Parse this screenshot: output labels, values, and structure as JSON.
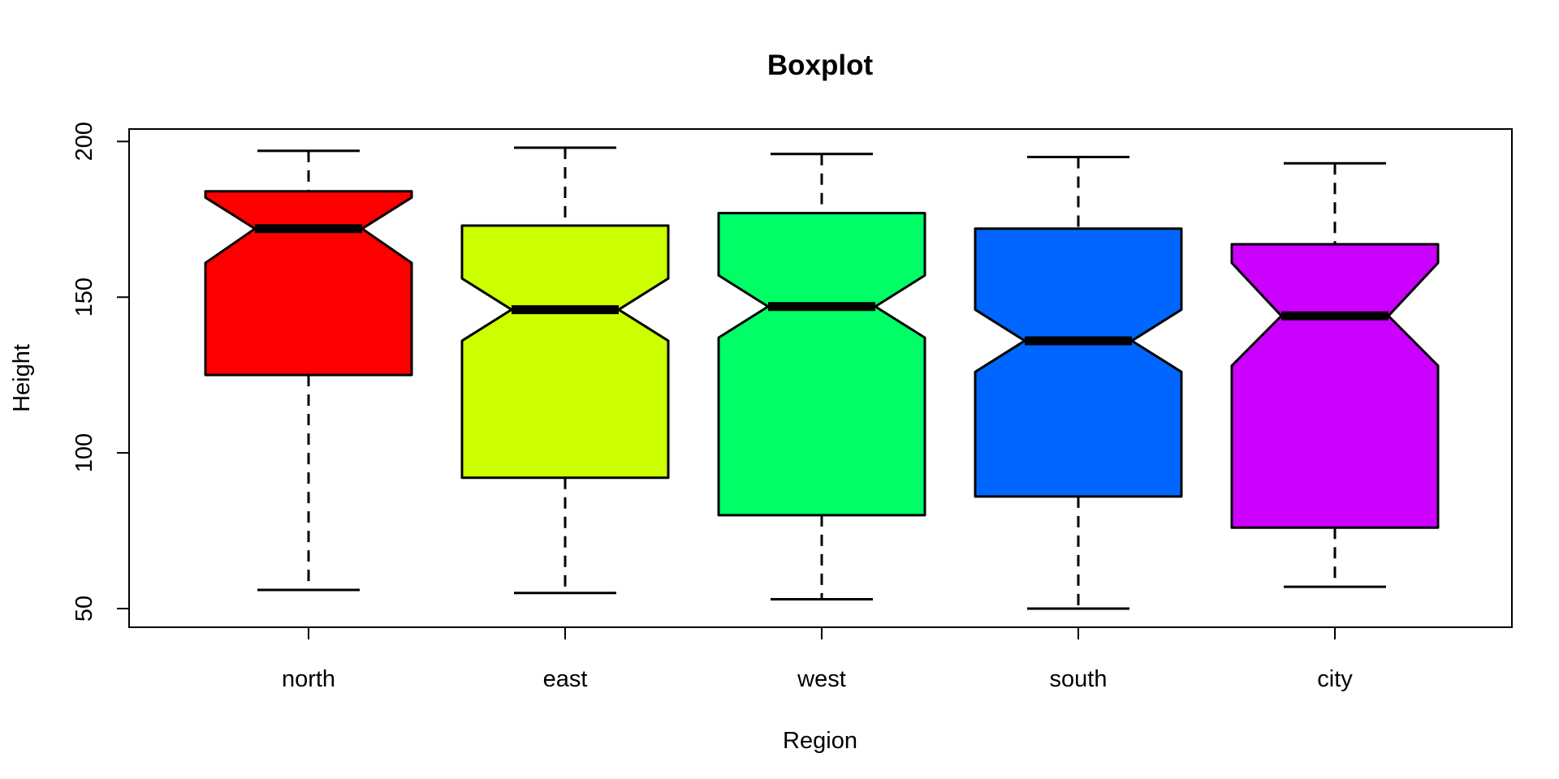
{
  "chart_data": {
    "type": "boxplot",
    "title": "Boxplot",
    "xlabel": "Region",
    "ylabel": "Height",
    "ylim": [
      44,
      204
    ],
    "yticks": [
      50,
      100,
      150,
      200
    ],
    "notched": true,
    "categories": [
      "north",
      "east",
      "west",
      "south",
      "city"
    ],
    "boxes": [
      {
        "category": "north",
        "min": 56,
        "q1": 125,
        "median": 172,
        "q3": 184,
        "max": 197,
        "notch_low": 161,
        "notch_high": 182,
        "color": "#FF0000"
      },
      {
        "category": "east",
        "min": 55,
        "q1": 92,
        "median": 146,
        "q3": 173,
        "max": 198,
        "notch_low": 136,
        "notch_high": 156,
        "color": "#CCFF00"
      },
      {
        "category": "west",
        "min": 53,
        "q1": 80,
        "median": 147,
        "q3": 177,
        "max": 196,
        "notch_low": 137,
        "notch_high": 157,
        "color": "#00FF66"
      },
      {
        "category": "south",
        "min": 50,
        "q1": 86,
        "median": 136,
        "q3": 172,
        "max": 195,
        "notch_low": 126,
        "notch_high": 146,
        "color": "#0066FF"
      },
      {
        "category": "city",
        "min": 57,
        "q1": 76,
        "median": 144,
        "q3": 167,
        "max": 193,
        "notch_low": 128,
        "notch_high": 161,
        "color": "#CC00FF"
      }
    ]
  }
}
